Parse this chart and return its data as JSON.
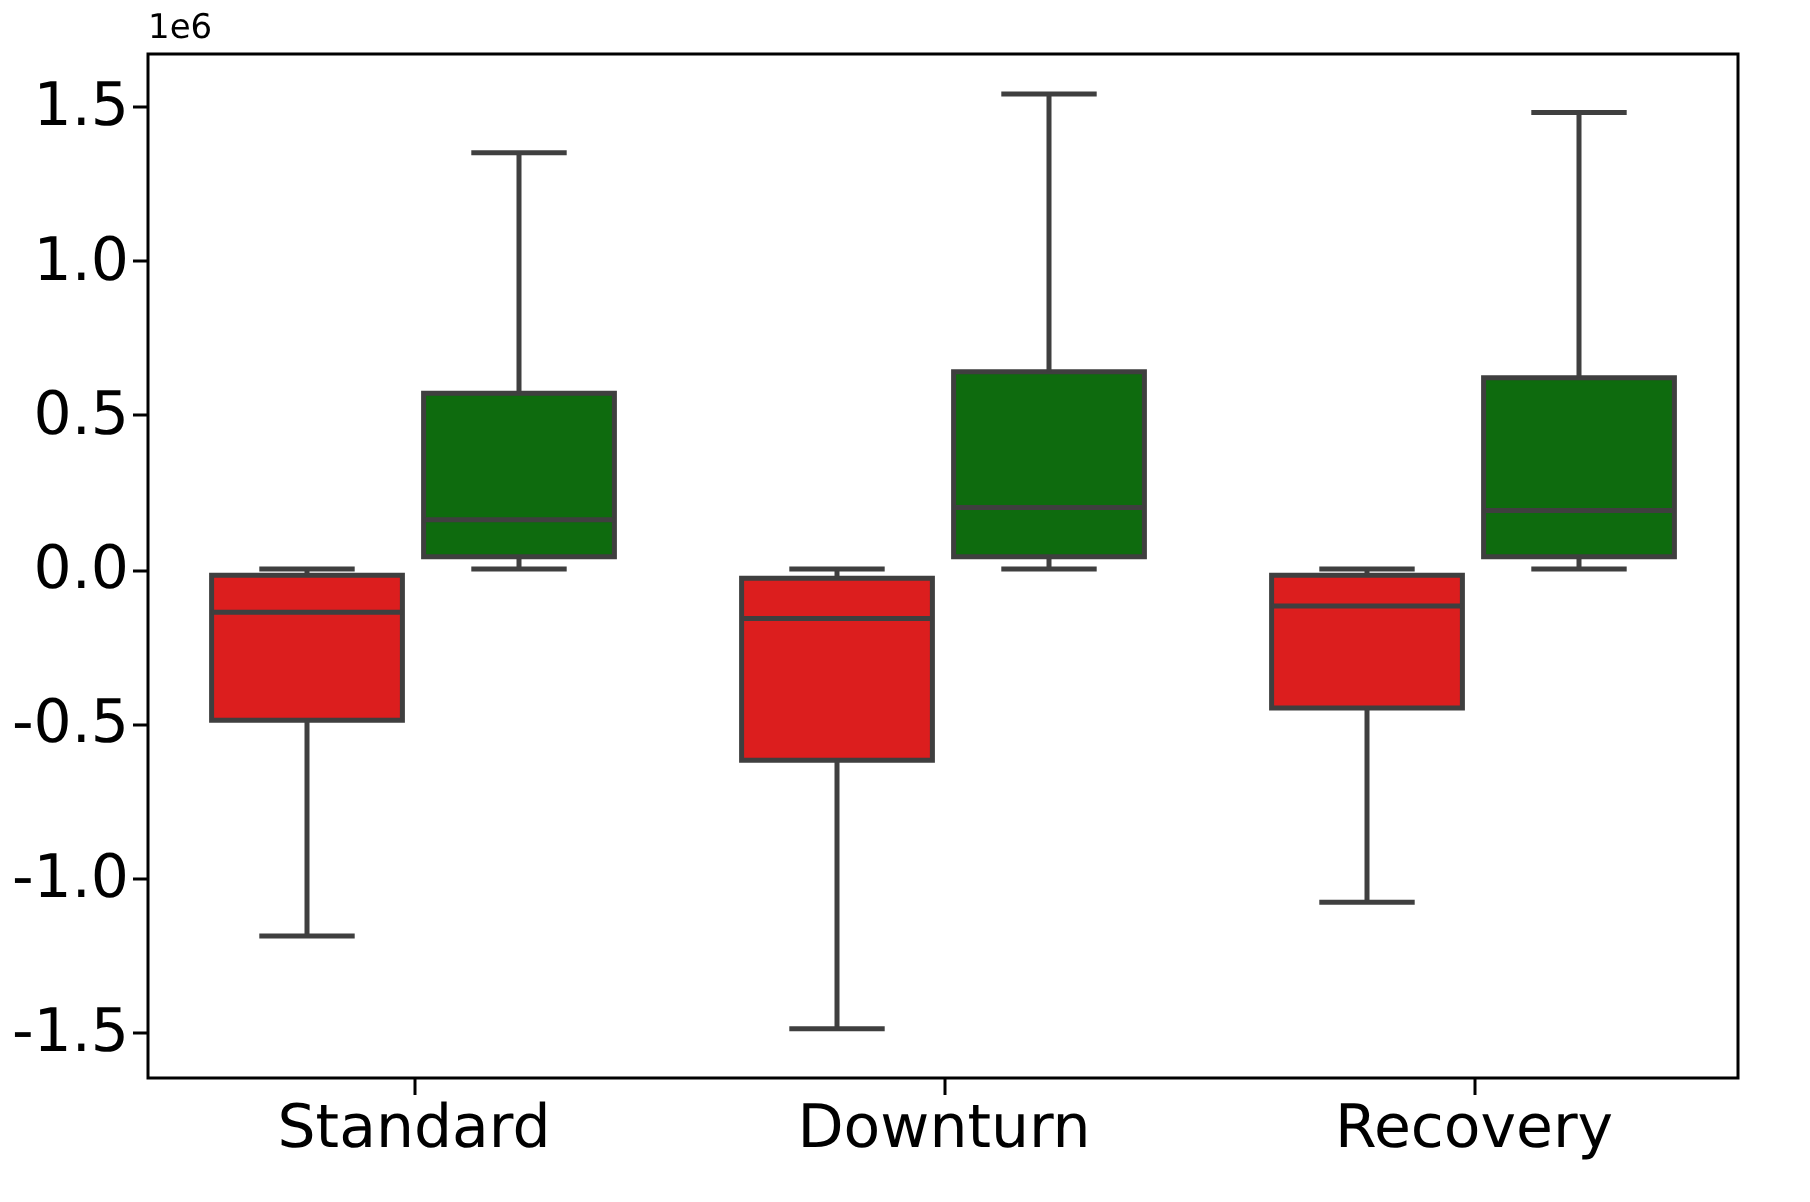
{
  "chart_data": {
    "type": "box",
    "categories": [
      "Standard",
      "Downturn",
      "Recovery"
    ],
    "series": [
      {
        "color": "#dc1e1e",
        "boxes": [
          {
            "low": -1.19,
            "q1": -0.49,
            "median": -0.14,
            "q3": -0.02,
            "high": 0.0
          },
          {
            "low": -1.49,
            "q1": -0.62,
            "median": -0.16,
            "q3": -0.03,
            "high": 0.0
          },
          {
            "low": -1.08,
            "q1": -0.45,
            "median": -0.12,
            "q3": -0.02,
            "high": 0.0
          }
        ]
      },
      {
        "color": "#0e6b0e",
        "boxes": [
          {
            "low": 0.0,
            "q1": 0.04,
            "median": 0.16,
            "q3": 0.57,
            "high": 1.35
          },
          {
            "low": 0.0,
            "q1": 0.04,
            "median": 0.2,
            "q3": 0.64,
            "high": 1.54
          },
          {
            "low": 0.0,
            "q1": 0.04,
            "median": 0.19,
            "q3": 0.62,
            "high": 1.48
          }
        ]
      }
    ],
    "ylim": [
      -1.65,
      1.67
    ],
    "yticks": [
      {
        "value": -1.5,
        "label": "-1.5"
      },
      {
        "value": -1.0,
        "label": "-1.0"
      },
      {
        "value": -0.5,
        "label": "-0.5"
      },
      {
        "value": 0.0,
        "label": "0.0"
      },
      {
        "value": 0.5,
        "label": "0.5"
      },
      {
        "value": 1.0,
        "label": "1.0"
      },
      {
        "value": 1.5,
        "label": "1.5"
      }
    ],
    "grid": false,
    "annotations": [
      "1e6"
    ]
  }
}
